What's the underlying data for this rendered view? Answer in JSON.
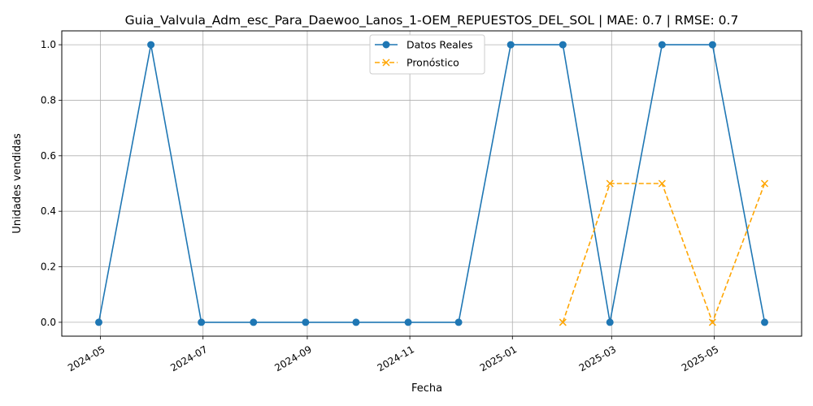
{
  "chart_data": {
    "type": "line",
    "title": "Guia_Valvula_Adm_esc_Para_Daewoo_Lanos_1-OEM_REPUESTOS_DEL_SOL | MAE: 0.7 | RMSE: 0.7",
    "xlabel": "Fecha",
    "ylabel": "Unidades vendidas",
    "xlim": [
      "2024-04-08",
      "2025-06-22"
    ],
    "ylim": [
      -0.05,
      1.05
    ],
    "x_ticks": [
      "2024-05",
      "2024-07",
      "2024-09",
      "2024-11",
      "2025-01",
      "2025-03",
      "2025-05"
    ],
    "x_tick_dates": [
      "2024-05-01",
      "2024-07-01",
      "2024-09-01",
      "2024-11-01",
      "2025-01-01",
      "2025-03-01",
      "2025-05-01"
    ],
    "y_ticks": [
      "0.0",
      "0.2",
      "0.4",
      "0.6",
      "0.8",
      "1.0"
    ],
    "y_tick_values": [
      0.0,
      0.2,
      0.4,
      0.6,
      0.8,
      1.0
    ],
    "grid": true,
    "legend_position": "top-center",
    "series": [
      {
        "name": "Datos Reales",
        "color": "#1f77b4",
        "line_style": "solid",
        "marker": "circle",
        "points": [
          {
            "x": "2024-04-30",
            "y": 0
          },
          {
            "x": "2024-05-31",
            "y": 1
          },
          {
            "x": "2024-06-30",
            "y": 0
          },
          {
            "x": "2024-07-31",
            "y": 0
          },
          {
            "x": "2024-08-31",
            "y": 0
          },
          {
            "x": "2024-09-30",
            "y": 0
          },
          {
            "x": "2024-10-31",
            "y": 0
          },
          {
            "x": "2024-11-30",
            "y": 0
          },
          {
            "x": "2024-12-31",
            "y": 1
          },
          {
            "x": "2025-01-31",
            "y": 1
          },
          {
            "x": "2025-02-28",
            "y": 0
          },
          {
            "x": "2025-03-31",
            "y": 1
          },
          {
            "x": "2025-04-30",
            "y": 1
          },
          {
            "x": "2025-05-31",
            "y": 0
          }
        ]
      },
      {
        "name": "Pronóstico",
        "color": "#ffa500",
        "line_style": "dashed",
        "marker": "x",
        "points": [
          {
            "x": "2025-01-31",
            "y": 0
          },
          {
            "x": "2025-02-28",
            "y": 0.5
          },
          {
            "x": "2025-03-31",
            "y": 0.5
          },
          {
            "x": "2025-04-30",
            "y": 0
          },
          {
            "x": "2025-05-31",
            "y": 0.5
          }
        ]
      }
    ]
  }
}
